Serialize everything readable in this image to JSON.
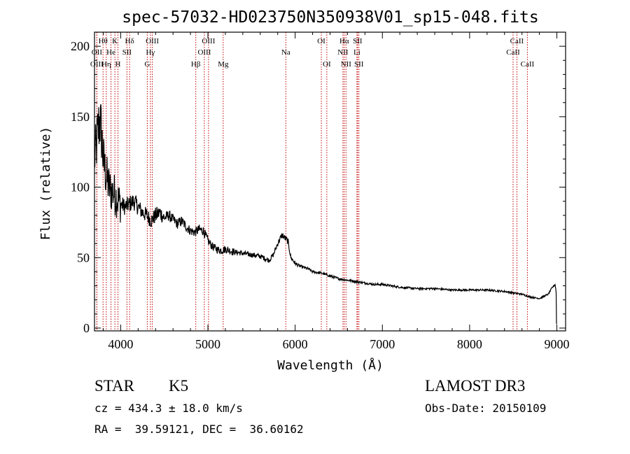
{
  "chart_data": {
    "type": "line",
    "title": "spec-57032-HD023750N350938V01_sp15-048.fits",
    "xlabel": "Wavelength (Å)",
    "ylabel": "Flux (relative)",
    "xlim": [
      3700,
      9100
    ],
    "ylim": [
      -2,
      210
    ],
    "xticks": [
      4000,
      5000,
      6000,
      7000,
      8000,
      9000
    ],
    "xtick_labels": [
      "4000",
      "5000",
      "6000",
      "7000",
      "8000",
      "9000"
    ],
    "yticks": [
      0,
      50,
      100,
      150,
      200
    ],
    "ytick_labels": [
      "0",
      "50",
      "100",
      "150",
      "200"
    ],
    "series": [
      {
        "name": "spectrum",
        "x": [
          3700,
          3720,
          3740,
          3760,
          3780,
          3800,
          3820,
          3850,
          3880,
          3920,
          3960,
          4000,
          4050,
          4100,
          4150,
          4200,
          4250,
          4300,
          4350,
          4400,
          4450,
          4500,
          4550,
          4600,
          4650,
          4700,
          4750,
          4800,
          4850,
          4900,
          4950,
          5000,
          5050,
          5100,
          5150,
          5200,
          5250,
          5300,
          5400,
          5500,
          5600,
          5700,
          5750,
          5800,
          5850,
          5880,
          5900,
          5920,
          5950,
          6000,
          6050,
          6100,
          6150,
          6200,
          6300,
          6400,
          6500,
          6600,
          6700,
          6800,
          6900,
          7000,
          7200,
          7400,
          7600,
          7800,
          8000,
          8200,
          8400,
          8500,
          8600,
          8700,
          8800,
          8900,
          8950,
          8980,
          9000
        ],
        "values": [
          120,
          128,
          140,
          148,
          138,
          120,
          112,
          104,
          98,
          96,
          92,
          88,
          86,
          88,
          90,
          86,
          82,
          80,
          76,
          80,
          82,
          78,
          80,
          77,
          74,
          76,
          72,
          69,
          68,
          70,
          69,
          62,
          58,
          56,
          55,
          56,
          55,
          54,
          53,
          52,
          51,
          48,
          52,
          60,
          66,
          64,
          63,
          61,
          50,
          46,
          44,
          43,
          42,
          40,
          39,
          37,
          35,
          34,
          33,
          32,
          31,
          31,
          29,
          28,
          28,
          27,
          27,
          27,
          26,
          25,
          24,
          22,
          21,
          24,
          29,
          31,
          22
        ]
      }
    ],
    "line_markers": [
      {
        "label": "Hθ",
        "row": 1,
        "x": 3798
      },
      {
        "label": "OII",
        "row": 2,
        "x": 3727
      },
      {
        "label": "OIII",
        "row": 3,
        "x": 3727
      },
      {
        "label": "K",
        "row": 1,
        "x": 3934
      },
      {
        "label": "He",
        "row": 2,
        "x": 3889
      },
      {
        "label": "Hη",
        "row": 3,
        "x": 3835
      },
      {
        "label": "Hδ",
        "row": 1,
        "x": 4102
      },
      {
        "label": "SII",
        "row": 2,
        "x": 4072
      },
      {
        "label": "H",
        "row": 3,
        "x": 3969
      },
      {
        "label": "OIII",
        "row": 1,
        "x": 4363
      },
      {
        "label": "Hγ",
        "row": 2,
        "x": 4341
      },
      {
        "label": "G",
        "row": 3,
        "x": 4305
      },
      {
        "label": "OIII",
        "row": 1,
        "x": 5007
      },
      {
        "label": "OIII",
        "row": 2,
        "x": 4959
      },
      {
        "label": "Hβ",
        "row": 3,
        "x": 4861
      },
      {
        "label": "Mg",
        "row": 3,
        "x": 5175
      },
      {
        "label": "Na",
        "row": 2,
        "x": 5893
      },
      {
        "label": "OI",
        "row": 1,
        "x": 6300
      },
      {
        "label": "OI",
        "row": 3,
        "x": 6363
      },
      {
        "label": "Hα",
        "row": 1,
        "x": 6563
      },
      {
        "label": "NII",
        "row": 2,
        "x": 6548
      },
      {
        "label": "NII",
        "row": 3,
        "x": 6583
      },
      {
        "label": "SII",
        "row": 1,
        "x": 6716
      },
      {
        "label": "Li",
        "row": 2,
        "x": 6708
      },
      {
        "label": "SII",
        "row": 3,
        "x": 6731
      },
      {
        "label": "CaII",
        "row": 1,
        "x": 8542
      },
      {
        "label": "CaII",
        "row": 2,
        "x": 8498
      },
      {
        "label": "CaII",
        "row": 3,
        "x": 8662
      }
    ],
    "colors": {
      "line": "#000000",
      "markers": "#c00000",
      "axes": "#000000"
    }
  },
  "info": {
    "class_label": "STAR",
    "subclass": "K5",
    "survey": "LAMOST DR3",
    "cz": "cz = 434.3 ± 18.0 km/s",
    "obs_date": "Obs-Date: 20150109",
    "radec": "RA =  39.59121, DEC =  36.60162"
  }
}
